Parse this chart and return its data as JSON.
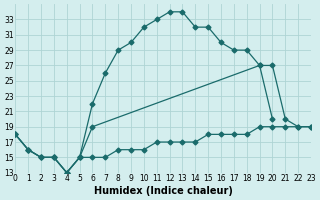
{
  "xlabel": "Humidex (Indice chaleur)",
  "bg_color": "#d4eeee",
  "grid_color": "#aed4d4",
  "line_color": "#1a6b6b",
  "line1_x": [
    0,
    1,
    2,
    3,
    4,
    5,
    6,
    7,
    8,
    9,
    10,
    11,
    12,
    13,
    14,
    15,
    16,
    17,
    18,
    19,
    20
  ],
  "line1_y": [
    18,
    16,
    15,
    15,
    13,
    15,
    22,
    26,
    29,
    30,
    32,
    33,
    34,
    34,
    32,
    32,
    30,
    29,
    29,
    27,
    20
  ],
  "line2_x": [
    0,
    1,
    2,
    3,
    4,
    5,
    6,
    19,
    20,
    21,
    22,
    23
  ],
  "line2_y": [
    18,
    16,
    15,
    15,
    13,
    15,
    19,
    27,
    27,
    20,
    19,
    19
  ],
  "line3_x": [
    0,
    1,
    2,
    3,
    4,
    5,
    6,
    7,
    8,
    9,
    10,
    11,
    12,
    13,
    14,
    15,
    16,
    17,
    18,
    19,
    20,
    21,
    22,
    23
  ],
  "line3_y": [
    18,
    16,
    15,
    15,
    13,
    15,
    15,
    15,
    16,
    16,
    16,
    17,
    17,
    17,
    17,
    18,
    18,
    18,
    18,
    19,
    19,
    19,
    19,
    19
  ],
  "xlim": [
    0,
    23
  ],
  "ylim": [
    13,
    35
  ],
  "yticks": [
    13,
    15,
    17,
    19,
    21,
    23,
    25,
    27,
    29,
    31,
    33
  ],
  "xticks": [
    0,
    1,
    2,
    3,
    4,
    5,
    6,
    7,
    8,
    9,
    10,
    11,
    12,
    13,
    14,
    15,
    16,
    17,
    18,
    19,
    20,
    21,
    22,
    23
  ],
  "label_fontsize": 7,
  "tick_fontsize": 5.5
}
